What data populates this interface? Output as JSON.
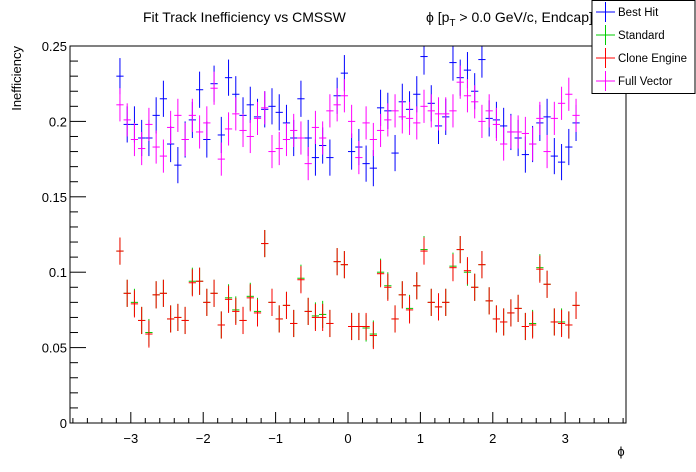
{
  "chart_data": {
    "type": "scatter",
    "title": "Fit Track Inefficiency vs CMSSW",
    "title_suffix_prefix": "ϕ [p",
    "title_suffix_sub": "T",
    "title_suffix_rest": " > 0.0 GeV/c, Endcap]",
    "xlabel": "ϕ",
    "ylabel": "Inefficiency",
    "xlim": [
      -3.84,
      3.84
    ],
    "ylim": [
      0,
      0.25
    ],
    "x_ticks": [
      -3,
      -2,
      -1,
      0,
      1,
      2,
      3
    ],
    "x_tick_labels": [
      "−3",
      "−2",
      "−1",
      "0",
      "1",
      "2",
      "3"
    ],
    "y_ticks": [
      0,
      0.05,
      0.1,
      0.15,
      0.2,
      0.25
    ],
    "y_tick_labels": [
      "0",
      "0.05",
      "0.1",
      "0.15",
      "0.2",
      "0.25"
    ],
    "grid": false,
    "legend_position": "top-right",
    "bins": {
      "start": -3.2,
      "width": 0.1,
      "count": 64
    },
    "series": [
      {
        "name": "Best Hit",
        "color": "#0000ff",
        "err": 0.012,
        "values": [
          0.23,
          0.198,
          0.198,
          0.189,
          0.189,
          0.204,
          0.215,
          0.185,
          0.171,
          0.188,
          0.201,
          0.221,
          0.188,
          0.225,
          0.191,
          0.229,
          0.218,
          0.204,
          0.211,
          0.203,
          0.208,
          0.21,
          0.206,
          0.199,
          0.189,
          0.215,
          0.189,
          0.176,
          0.184,
          0.176,
          0.217,
          0.232,
          0.18,
          0.183,
          0.172,
          0.169,
          0.209,
          0.207,
          0.179,
          0.213,
          0.208,
          0.218,
          0.243,
          0.212,
          0.197,
          0.203,
          0.239,
          0.229,
          0.234,
          0.22,
          0.241,
          0.202,
          0.201,
          0.197,
          0.193,
          0.189,
          0.178,
          0.185,
          0.199,
          0.203,
          0.177,
          0.173,
          0.183,
          0.199
        ]
      },
      {
        "name": "Standard",
        "color": "#00cc00",
        "err": 0.009,
        "values": [
          0.114,
          0.086,
          0.08,
          0.068,
          0.06,
          0.085,
          0.086,
          0.069,
          0.07,
          0.068,
          0.094,
          0.094,
          0.08,
          0.086,
          0.065,
          0.083,
          0.075,
          0.068,
          0.084,
          0.074,
          0.119,
          0.08,
          0.069,
          0.078,
          0.066,
          0.096,
          0.074,
          0.071,
          0.072,
          0.066,
          0.107,
          0.105,
          0.064,
          0.064,
          0.063,
          0.059,
          0.1,
          0.091,
          0.069,
          0.085,
          0.076,
          0.091,
          0.115,
          0.08,
          0.077,
          0.08,
          0.104,
          0.115,
          0.1,
          0.09,
          0.105,
          0.081,
          0.069,
          0.067,
          0.073,
          0.076,
          0.064,
          0.066,
          0.103,
          0.092,
          0.067,
          0.067,
          0.065,
          0.078
        ]
      },
      {
        "name": "Clone Engine",
        "color": "#ff0000",
        "err": 0.009,
        "values": [
          0.114,
          0.086,
          0.079,
          0.068,
          0.059,
          0.085,
          0.086,
          0.069,
          0.07,
          0.068,
          0.093,
          0.094,
          0.08,
          0.086,
          0.065,
          0.082,
          0.074,
          0.068,
          0.083,
          0.073,
          0.119,
          0.08,
          0.069,
          0.078,
          0.066,
          0.095,
          0.074,
          0.07,
          0.07,
          0.066,
          0.107,
          0.105,
          0.064,
          0.064,
          0.064,
          0.058,
          0.099,
          0.09,
          0.069,
          0.085,
          0.075,
          0.091,
          0.114,
          0.08,
          0.077,
          0.08,
          0.103,
          0.115,
          0.101,
          0.09,
          0.105,
          0.081,
          0.069,
          0.067,
          0.073,
          0.076,
          0.064,
          0.065,
          0.102,
          0.092,
          0.067,
          0.066,
          0.065,
          0.078
        ]
      },
      {
        "name": "Full Vector",
        "color": "#ff00ff",
        "err": 0.011,
        "values": [
          0.211,
          0.201,
          0.188,
          0.182,
          0.198,
          0.183,
          0.177,
          0.196,
          0.204,
          0.188,
          0.204,
          0.193,
          0.199,
          0.222,
          0.175,
          0.195,
          0.205,
          0.194,
          0.19,
          0.202,
          0.209,
          0.18,
          0.182,
          0.188,
          0.194,
          0.189,
          0.172,
          0.196,
          0.189,
          0.207,
          0.211,
          0.217,
          0.2,
          0.176,
          0.199,
          0.188,
          0.194,
          0.201,
          0.207,
          0.203,
          0.202,
          0.199,
          0.21,
          0.207,
          0.205,
          0.205,
          0.207,
          0.226,
          0.217,
          0.213,
          0.2,
          0.207,
          0.198,
          0.185,
          0.193,
          0.193,
          0.192,
          0.185,
          0.202,
          0.18,
          0.202,
          0.212,
          0.218,
          0.204
        ]
      }
    ]
  }
}
